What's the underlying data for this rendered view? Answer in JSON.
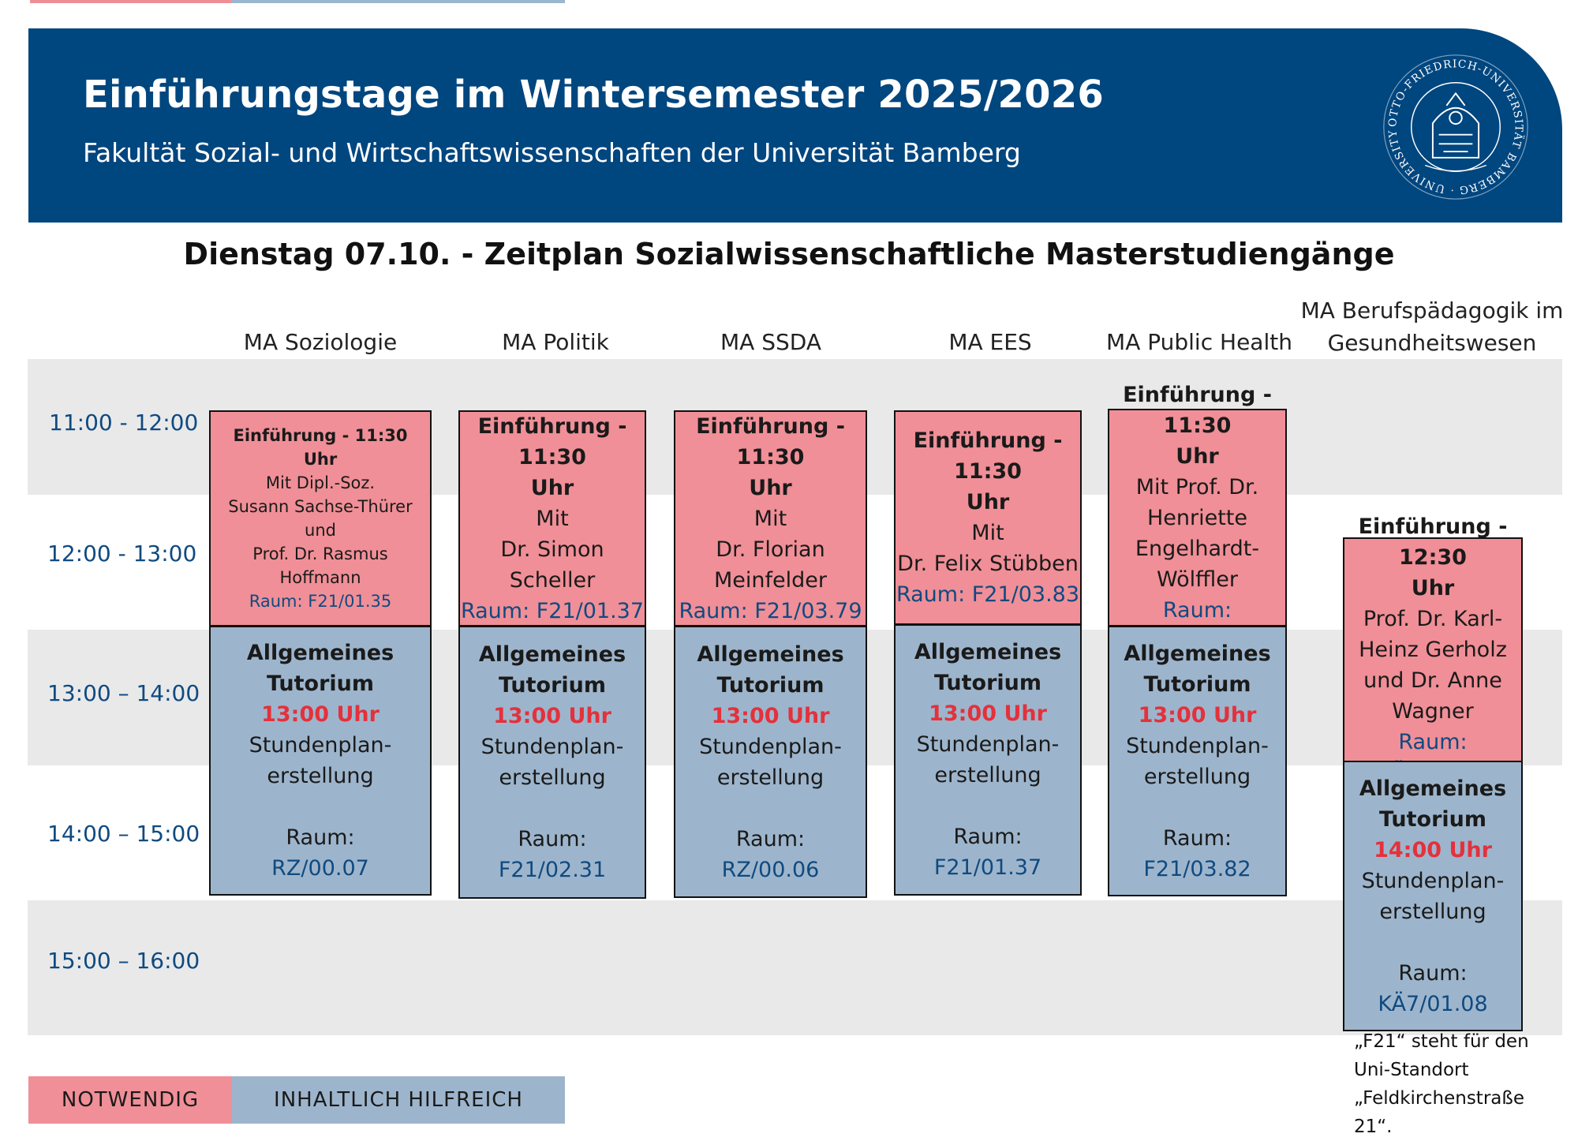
{
  "header": {
    "title": "Einführungstage im Wintersemester 2025/2026",
    "subtitle": "Fakultät Sozial- und Wirtschaftswissenschaften der Universität Bamberg",
    "seal_text": "OTTO-FRIEDRICH-UNIVERSITÄT BAMBERG · UNIVERSITY OF BAMBERG",
    "color": "#00467f"
  },
  "heading": "Dienstag 07.10. - Zeitplan Sozialwissenschaftliche Masterstudiengänge",
  "columns": [
    {
      "lines": [
        "MA  Soziologie"
      ]
    },
    {
      "lines": [
        "MA Politik"
      ]
    },
    {
      "lines": [
        "MA SSDA"
      ]
    },
    {
      "lines": [
        "MA EES"
      ]
    },
    {
      "lines": [
        "MA Public Health"
      ]
    },
    {
      "lines": [
        "MA Berufspädagogik im",
        "Gesundheitswesen"
      ]
    }
  ],
  "times": [
    "11:00 - 12:00",
    "12:00 - 13:00",
    "13:00 – 14:00",
    "14:00 – 15:00",
    "15:00 – 16:00"
  ],
  "colors": {
    "notwendig": "#f08f97",
    "hilfreich": "#9db5cc",
    "band": "#e9e9ea",
    "time_red": "#e4313b",
    "room_blue": "#0f4a80"
  },
  "boxes": [
    {
      "type": "notwendig",
      "lines": [
        {
          "t": "Einführung - 11:30",
          "s": "b"
        },
        {
          "t": "Uhr",
          "s": "b"
        },
        {
          "t": "Mit Dipl.-Soz.",
          "s": ""
        },
        {
          "t": "Susann Sachse-Thürer",
          "s": ""
        },
        {
          "t": "und",
          "s": ""
        },
        {
          "t": "Prof. Dr. Rasmus Hoffmann",
          "s": ""
        },
        {
          "t": "Raum: F21/01.35",
          "s": "room"
        }
      ]
    },
    {
      "type": "hilfreich",
      "lines": [
        {
          "t": "Allgemeines Tutorium",
          "s": "b"
        },
        {
          "t": "13:00 Uhr",
          "s": "red"
        },
        {
          "t": "Stundenplan-",
          "s": ""
        },
        {
          "t": "erstellung",
          "s": ""
        },
        {
          "t": "",
          "s": "gap"
        },
        {
          "t": "Raum:",
          "s": ""
        },
        {
          "t": "RZ/00.07",
          "s": "room"
        }
      ]
    },
    {
      "type": "notwendig",
      "lines": [
        {
          "t": "Einführung - 11:30",
          "s": "b"
        },
        {
          "t": "Uhr",
          "s": "b"
        },
        {
          "t": "Mit",
          "s": ""
        },
        {
          "t": "Dr. Simon",
          "s": ""
        },
        {
          "t": "Scheller",
          "s": ""
        },
        {
          "t": "Raum: F21/01.37",
          "s": "room"
        }
      ]
    },
    {
      "type": "hilfreich",
      "lines": [
        {
          "t": "Allgemeines",
          "s": "b"
        },
        {
          "t": "Tutorium",
          "s": "b"
        },
        {
          "t": "13:00 Uhr",
          "s": "red"
        },
        {
          "t": "Stundenplan-",
          "s": ""
        },
        {
          "t": "erstellung",
          "s": ""
        },
        {
          "t": "",
          "s": "gap"
        },
        {
          "t": "Raum:",
          "s": ""
        },
        {
          "t": "F21/02.31",
          "s": "room"
        }
      ]
    },
    {
      "type": "notwendig",
      "lines": [
        {
          "t": "Einführung - 11:30",
          "s": "b"
        },
        {
          "t": "Uhr",
          "s": "b"
        },
        {
          "t": "Mit",
          "s": ""
        },
        {
          "t": "Dr. Florian",
          "s": ""
        },
        {
          "t": "Meinfelder",
          "s": ""
        },
        {
          "t": "Raum: F21/03.79",
          "s": "room"
        }
      ]
    },
    {
      "type": "hilfreich",
      "lines": [
        {
          "t": "Allgemeines",
          "s": "b"
        },
        {
          "t": "Tutorium",
          "s": "b"
        },
        {
          "t": "13:00 Uhr",
          "s": "red"
        },
        {
          "t": "Stundenplan-",
          "s": ""
        },
        {
          "t": "erstellung",
          "s": ""
        },
        {
          "t": "",
          "s": "gap"
        },
        {
          "t": "Raum:",
          "s": ""
        },
        {
          "t": "RZ/00.06",
          "s": "room"
        }
      ]
    },
    {
      "type": "notwendig",
      "lines": [
        {
          "t": "Einführung - 11:30",
          "s": "b"
        },
        {
          "t": "Uhr",
          "s": "b"
        },
        {
          "t": "Mit",
          "s": ""
        },
        {
          "t": "Dr. Felix Stübben",
          "s": ""
        },
        {
          "t": "Raum: F21/03.83",
          "s": "room"
        }
      ]
    },
    {
      "type": "hilfreich",
      "lines": [
        {
          "t": "Allgemeines",
          "s": "b"
        },
        {
          "t": "Tutorium",
          "s": "b"
        },
        {
          "t": "13:00 Uhr",
          "s": "red"
        },
        {
          "t": "Stundenplan-",
          "s": ""
        },
        {
          "t": "erstellung",
          "s": ""
        },
        {
          "t": "",
          "s": "gap"
        },
        {
          "t": "Raum:",
          "s": ""
        },
        {
          "t": "F21/01.37",
          "s": "room"
        }
      ]
    },
    {
      "type": "notwendig",
      "lines": [
        {
          "t": "Einführung - 11:30",
          "s": "b"
        },
        {
          "t": "Uhr",
          "s": "b"
        },
        {
          "t": "Mit Prof. Dr.",
          "s": ""
        },
        {
          "t": "Henriette",
          "s": ""
        },
        {
          "t": "Engelhardt-",
          "s": ""
        },
        {
          "t": "Wölffler",
          "s": ""
        },
        {
          "t": "Raum: F21/03.82",
          "s": "room"
        }
      ]
    },
    {
      "type": "hilfreich",
      "lines": [
        {
          "t": "Allgemeines",
          "s": "b"
        },
        {
          "t": "Tutorium",
          "s": "b"
        },
        {
          "t": "13:00 Uhr",
          "s": "red"
        },
        {
          "t": "Stundenplan-",
          "s": ""
        },
        {
          "t": "erstellung",
          "s": ""
        },
        {
          "t": "",
          "s": "gap"
        },
        {
          "t": "Raum:",
          "s": ""
        },
        {
          "t": "F21/03.82",
          "s": "room"
        }
      ]
    },
    {
      "type": "notwendig",
      "lines": [
        {
          "t": "Einführung - 12:30",
          "s": "b"
        },
        {
          "t": "Uhr",
          "s": "b"
        },
        {
          "t": "Prof. Dr. Karl-",
          "s": ""
        },
        {
          "t": "Heinz Gerholz",
          "s": ""
        },
        {
          "t": "und Dr. Anne",
          "s": ""
        },
        {
          "t": "Wagner",
          "s": ""
        },
        {
          "t": "Raum: KÄ7/01.08",
          "s": "room"
        }
      ]
    },
    {
      "type": "hilfreich",
      "lines": [
        {
          "t": "Allgemeines",
          "s": "b"
        },
        {
          "t": "Tutorium",
          "s": "b"
        },
        {
          "t": "14:00 Uhr",
          "s": "red"
        },
        {
          "t": "Stundenplan-",
          "s": ""
        },
        {
          "t": "erstellung",
          "s": ""
        },
        {
          "t": "",
          "s": "gap"
        },
        {
          "t": "Raum:",
          "s": ""
        },
        {
          "t": "KÄ7/01.08",
          "s": "room"
        }
      ]
    }
  ],
  "footnote": [
    "„F21“ steht für den",
    "Uni-Standort",
    "„Feldkirchenstraße 21“."
  ],
  "legend": {
    "notwendig": "NOTWENDIG",
    "hilfreich": "INHALTLICH HILFREICH"
  }
}
